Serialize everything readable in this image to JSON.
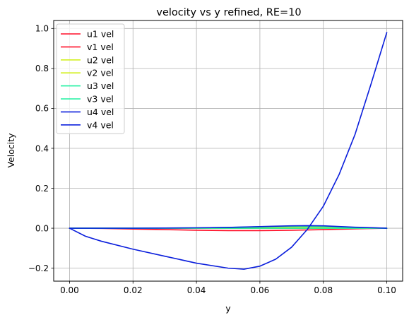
{
  "chart_data": {
    "type": "line",
    "title": "velocity vs y refined, RE=10",
    "xlabel": "y",
    "ylabel": "Velocity",
    "xlim": [
      -0.005,
      0.105
    ],
    "ylim": [
      -0.265,
      1.04
    ],
    "xticks": [
      0.0,
      0.02,
      0.04,
      0.06,
      0.08,
      0.1
    ],
    "xtick_labels": [
      "0.00",
      "0.02",
      "0.04",
      "0.06",
      "0.08",
      "0.10"
    ],
    "yticks": [
      -0.2,
      0.0,
      0.2,
      0.4,
      0.6,
      0.8,
      1.0
    ],
    "ytick_labels": [
      "−0.2",
      "0.0",
      "0.2",
      "0.4",
      "0.6",
      "0.8",
      "1.0"
    ],
    "grid": true,
    "legend_position": "upper-left",
    "series": [
      {
        "name": "u1 vel",
        "color": "#ff0f28",
        "x": [
          0,
          0.01,
          0.02,
          0.03,
          0.04,
          0.05,
          0.06,
          0.07,
          0.08,
          0.09,
          0.1
        ],
        "y": [
          0,
          0.0,
          0.0,
          0.0,
          0.0,
          0.0,
          0.0,
          0.0,
          0.0,
          0.0,
          0.0
        ]
      },
      {
        "name": "v1 vel",
        "color": "#ff0f28",
        "x": [
          0,
          0.01,
          0.02,
          0.03,
          0.04,
          0.05,
          0.06,
          0.07,
          0.08,
          0.09,
          0.1
        ],
        "y": [
          0,
          -0.001,
          -0.004,
          -0.007,
          -0.01,
          -0.012,
          -0.012,
          -0.01,
          -0.007,
          -0.003,
          0.0
        ]
      },
      {
        "name": "u2 vel",
        "color": "#d2f01e",
        "x": [
          0,
          0.01,
          0.02,
          0.03,
          0.04,
          0.05,
          0.06,
          0.07,
          0.08,
          0.09,
          0.1
        ],
        "y": [
          0,
          0.0,
          0.0,
          0.0,
          0.0,
          0.0,
          0.0,
          0.0,
          0.0,
          0.0,
          0.0
        ]
      },
      {
        "name": "v2 vel",
        "color": "#d2f01e",
        "x": [
          0,
          0.01,
          0.02,
          0.03,
          0.04,
          0.05,
          0.06,
          0.07,
          0.08,
          0.09,
          0.1
        ],
        "y": [
          0,
          0.0,
          0.0,
          0.0,
          0.001,
          0.002,
          0.004,
          0.006,
          0.006,
          0.003,
          0.0
        ]
      },
      {
        "name": "u3 vel",
        "color": "#1ef0a0",
        "x": [
          0,
          0.01,
          0.02,
          0.03,
          0.04,
          0.05,
          0.06,
          0.07,
          0.08,
          0.09,
          0.1
        ],
        "y": [
          0,
          0.0,
          0.0,
          0.0,
          0.0,
          0.0,
          0.0,
          0.0,
          0.0,
          0.0,
          0.0
        ]
      },
      {
        "name": "v3 vel",
        "color": "#1ef0a0",
        "x": [
          0,
          0.01,
          0.02,
          0.03,
          0.04,
          0.05,
          0.06,
          0.07,
          0.08,
          0.09,
          0.1
        ],
        "y": [
          0,
          0.0,
          0.0,
          0.001,
          0.002,
          0.004,
          0.007,
          0.01,
          0.009,
          0.004,
          0.0
        ]
      },
      {
        "name": "u4 vel",
        "color": "#0a1edc",
        "x": [
          0,
          0.005,
          0.01,
          0.02,
          0.03,
          0.04,
          0.05,
          0.055,
          0.06,
          0.065,
          0.07,
          0.075,
          0.08,
          0.085,
          0.09,
          0.095,
          0.1
        ],
        "y": [
          0,
          -0.04,
          -0.065,
          -0.105,
          -0.14,
          -0.175,
          -0.2,
          -0.205,
          -0.19,
          -0.155,
          -0.095,
          -0.005,
          0.11,
          0.27,
          0.47,
          0.72,
          0.98
        ]
      },
      {
        "name": "v4 vel",
        "color": "#0a1edc",
        "x": [
          0,
          0.01,
          0.02,
          0.03,
          0.04,
          0.05,
          0.06,
          0.07,
          0.075,
          0.08,
          0.09,
          0.1
        ],
        "y": [
          0,
          0.0,
          0.0,
          0.001,
          0.002,
          0.004,
          0.008,
          0.012,
          0.013,
          0.012,
          0.005,
          0.0
        ]
      }
    ]
  }
}
